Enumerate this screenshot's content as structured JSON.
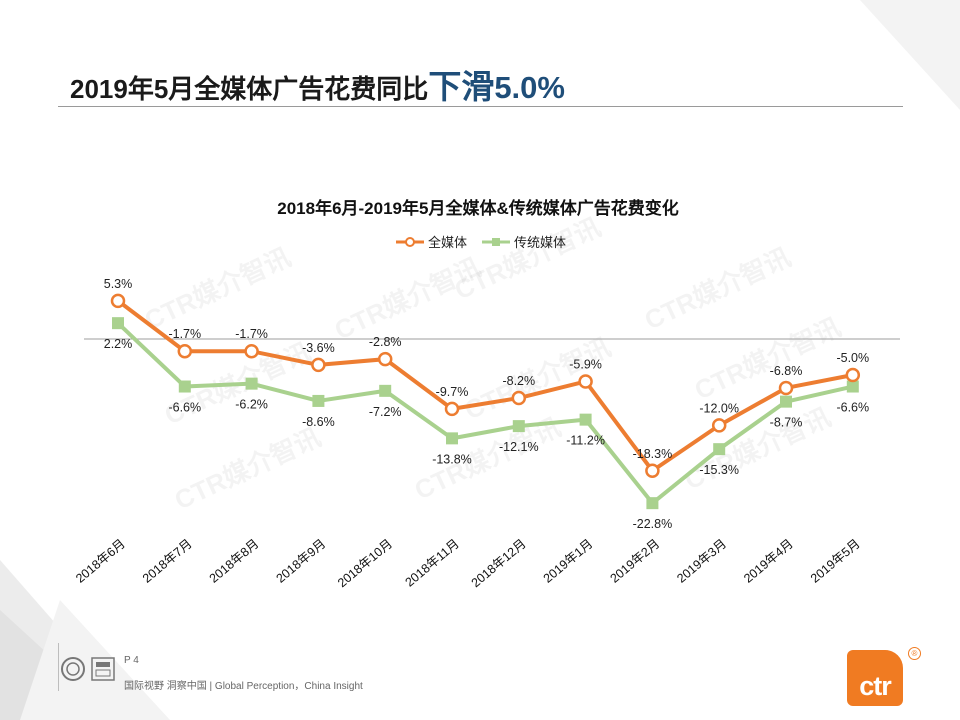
{
  "page": {
    "title_prefix": "2019年5月全媒体广告花费同比",
    "title_highlight_word": "下滑",
    "title_highlight_value": "5.0%",
    "page_number": "P 4",
    "slogan": "国际视野  洞察中国 | Global Perception，China Insight",
    "brand_logo_text": "ctr",
    "brand_reg_mark": "®",
    "watermark_text": "CTR媒介智讯"
  },
  "colors": {
    "series_all_media": "#ed7d31",
    "series_traditional": "#a9d18e",
    "title_highlight": "#1f4e79",
    "brand": "#f07b22"
  },
  "chart_data": {
    "type": "line",
    "title": "2018年6月-2019年5月全媒体&传统媒体广告花费变化",
    "categories": [
      "2018年6月",
      "2018年7月",
      "2018年8月",
      "2018年9月",
      "2018年10月",
      "2018年11月",
      "2018年12月",
      "2019年1月",
      "2019年2月",
      "2019年3月",
      "2019年4月",
      "2019年5月"
    ],
    "series": [
      {
        "name": "全媒体",
        "marker": "circle",
        "values": [
          5.3,
          -1.7,
          -1.7,
          -3.6,
          -2.8,
          -9.7,
          -8.2,
          -5.9,
          -18.3,
          -12.0,
          -6.8,
          -5.0
        ],
        "labels": [
          "5.3%",
          "-1.7%",
          "-1.7%",
          "-3.6%",
          "-2.8%",
          "-9.7%",
          "-8.2%",
          "-5.9%",
          "-18.3%",
          "-12.0%",
          "-6.8%",
          "-5.0%"
        ]
      },
      {
        "name": "传统媒体",
        "marker": "square",
        "values": [
          2.2,
          -6.6,
          -6.2,
          -8.6,
          -7.2,
          -13.8,
          -12.1,
          -11.2,
          -22.8,
          -15.3,
          -8.7,
          -6.6
        ],
        "labels": [
          "2.2%",
          "-6.6%",
          "-6.2%",
          "-8.6%",
          "-7.2%",
          "-13.8%",
          "-12.1%",
          "-11.2%",
          "-22.8%",
          "-15.3%",
          "-8.7%",
          "-6.6%"
        ]
      }
    ],
    "xlabel": "",
    "ylabel": "",
    "y_axis_visible": false,
    "zero_line": true,
    "ylim": [
      -25,
      8
    ],
    "legend_position": "top-center"
  }
}
